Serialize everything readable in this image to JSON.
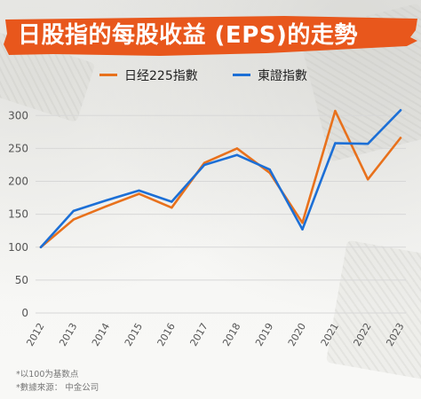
{
  "title": "日股指的每股收益 (EPS)的走勢",
  "colors": {
    "banner": "#e8571c",
    "nikkei": "#e8711c",
    "topix": "#1c6fd6",
    "grid": "#d7d7d7",
    "axis_text": "#555555"
  },
  "footnotes": {
    "base": "*以100为基数点",
    "source": "*數據來源： 中金公司"
  },
  "chart_data": {
    "type": "line",
    "title": "日股指的每股收益 (EPS)的走勢",
    "xlabel": "",
    "ylabel": "",
    "x": [
      "2012",
      "2013",
      "2014",
      "2015",
      "2016",
      "2017",
      "2018",
      "2019",
      "2020",
      "2021",
      "2022",
      "2023"
    ],
    "series": [
      {
        "name": "日经225指數",
        "color": "#e8711c",
        "values": [
          100,
          142,
          162,
          181,
          160,
          228,
          250,
          213,
          137,
          307,
          203,
          266
        ]
      },
      {
        "name": "東證指數",
        "color": "#1c6fd6",
        "values": [
          100,
          155,
          171,
          186,
          169,
          225,
          240,
          218,
          127,
          258,
          257,
          308
        ]
      }
    ],
    "ylim": [
      0,
      330
    ],
    "yticks": [
      0,
      50,
      100,
      150,
      200,
      250,
      300
    ],
    "grid": true,
    "legend": "top-center"
  }
}
